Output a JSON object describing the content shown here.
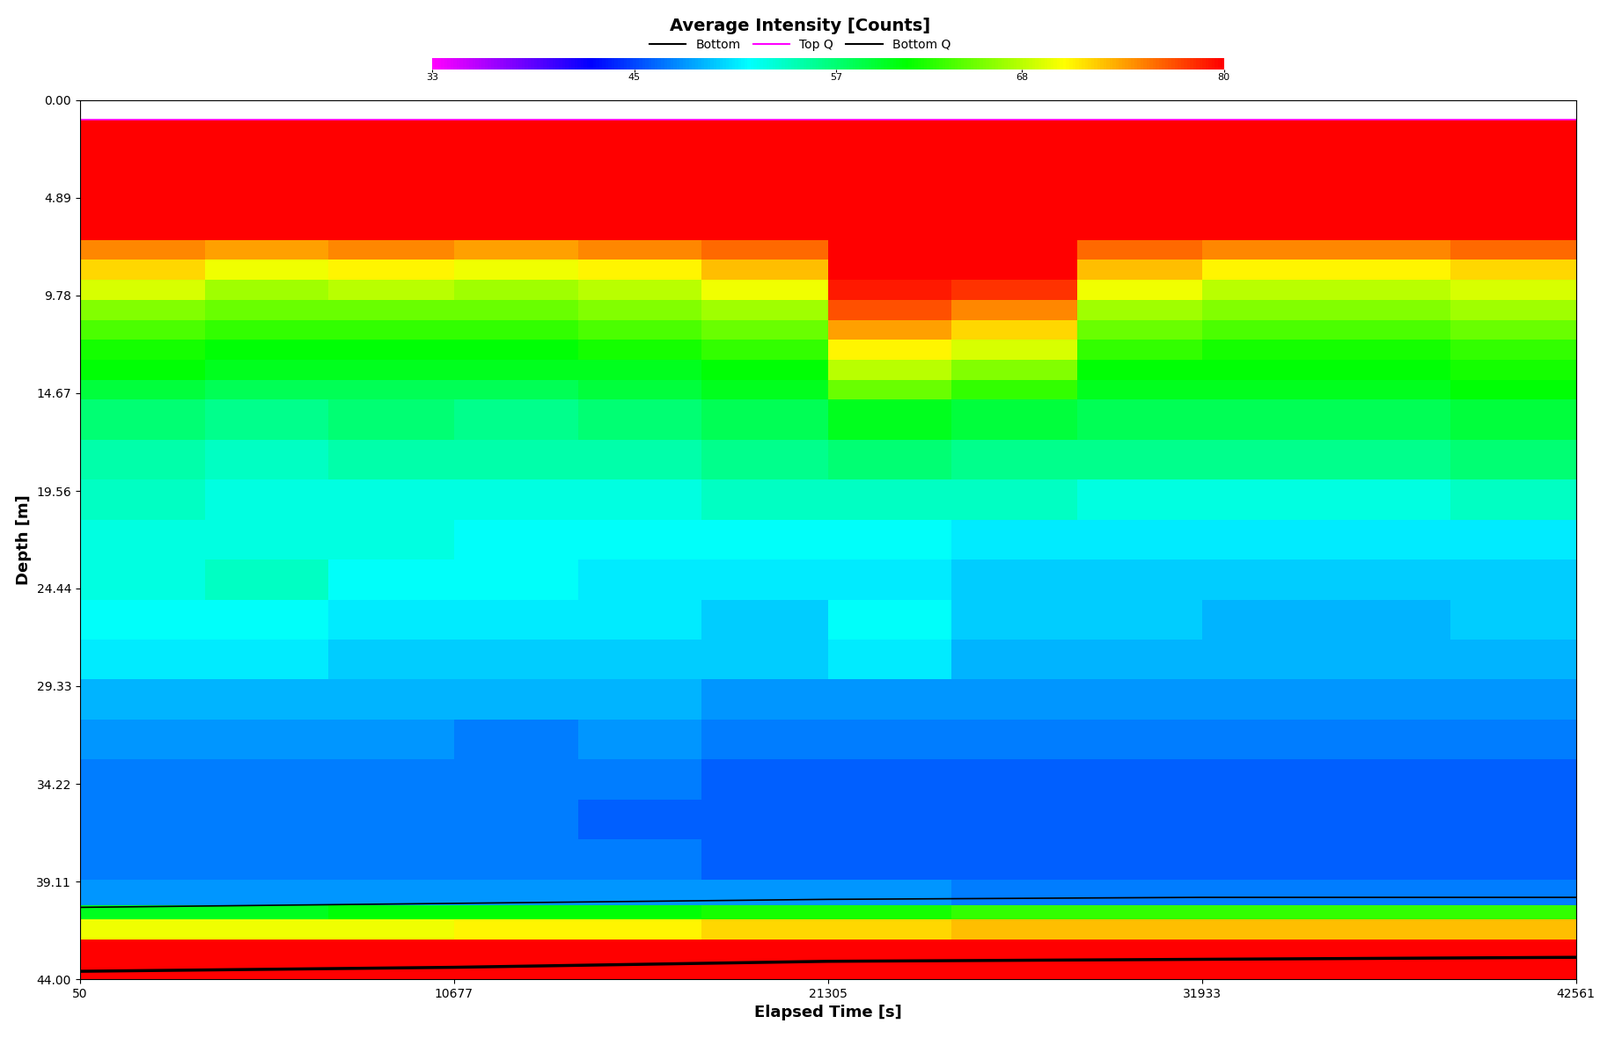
{
  "chart_data": {
    "type": "heatmap",
    "title": "Average Intensity [Counts]",
    "x_label": "Elapsed Time [s]",
    "y_label": "Depth [m]",
    "xlim": [
      50,
      42561
    ],
    "xticks": [
      50,
      10677,
      21305,
      31933,
      42561
    ],
    "ylim": [
      44,
      0
    ],
    "yticks": [
      {
        "value": 0,
        "label": "0.00"
      },
      4.89,
      9.78,
      14.67,
      19.56,
      24.44,
      29.33,
      34.22,
      39.11,
      {
        "value": 44,
        "label": "44.00"
      }
    ],
    "legend": "upper center",
    "colorbar_range": [
      33,
      80
    ],
    "colorbar_ticks": [
      33,
      45,
      57,
      68,
      80
    ],
    "time_edges": [
      50,
      3600,
      7100,
      10677,
      14200,
      17700,
      21305,
      24800,
      28400,
      31933,
      35500,
      39000,
      42561
    ],
    "depth_edges": [
      1,
      3,
      5,
      7,
      8,
      9,
      10,
      11,
      12,
      13,
      14,
      15,
      17,
      19,
      21,
      23,
      25,
      27,
      29,
      31,
      33,
      35,
      37,
      39,
      40.3,
      41,
      42,
      44
    ],
    "cells": [
      [
        80,
        80,
        80,
        80,
        80,
        80,
        80,
        80,
        80,
        80,
        80,
        80
      ],
      [
        80,
        80,
        80,
        80,
        80,
        80,
        80,
        80,
        80,
        80,
        80,
        80
      ],
      [
        80,
        80,
        80,
        80,
        80,
        80,
        80,
        80,
        80,
        80,
        80,
        80
      ],
      [
        75,
        74,
        75,
        74,
        75,
        76,
        80,
        80,
        76,
        75,
        75,
        76
      ],
      [
        72,
        70,
        71,
        70,
        71,
        73,
        80,
        80,
        73,
        71,
        71,
        72
      ],
      [
        69,
        67,
        68,
        67,
        68,
        70,
        79,
        78,
        70,
        68,
        68,
        69
      ],
      [
        66,
        65,
        65,
        65,
        66,
        67,
        77,
        75,
        67,
        66,
        66,
        67
      ],
      [
        64,
        63,
        63,
        63,
        64,
        65,
        74,
        72,
        65,
        64,
        64,
        65
      ],
      [
        62,
        61,
        61,
        61,
        62,
        63,
        71,
        69,
        63,
        62,
        62,
        63
      ],
      [
        61,
        60,
        60,
        60,
        60,
        61,
        68,
        66,
        61,
        61,
        61,
        62
      ],
      [
        59,
        58,
        58,
        58,
        59,
        60,
        65,
        63,
        60,
        60,
        60,
        61
      ],
      [
        57,
        56,
        57,
        56,
        57,
        58,
        60,
        59,
        58,
        58,
        58,
        59
      ],
      [
        55,
        54,
        55,
        55,
        55,
        56,
        57,
        56,
        56,
        56,
        56,
        57
      ],
      [
        54,
        53,
        53,
        53,
        53,
        54,
        54,
        54,
        53,
        53,
        53,
        54
      ],
      [
        53,
        53,
        53,
        52,
        52,
        52,
        52,
        51,
        51,
        51,
        51,
        51
      ],
      [
        53,
        54,
        52,
        52,
        51,
        51,
        51,
        50,
        50,
        50,
        50,
        50
      ],
      [
        52,
        52,
        51,
        51,
        51,
        50,
        52,
        50,
        50,
        49,
        49,
        50
      ],
      [
        51,
        51,
        50,
        50,
        50,
        50,
        51,
        49,
        49,
        49,
        49,
        49
      ],
      [
        49,
        49,
        49,
        49,
        49,
        48,
        48,
        48,
        48,
        48,
        48,
        48
      ],
      [
        48,
        48,
        48,
        47,
        48,
        47,
        47,
        47,
        47,
        47,
        47,
        47
      ],
      [
        47,
        47,
        47,
        47,
        47,
        46,
        46,
        46,
        46,
        46,
        46,
        46
      ],
      [
        47,
        47,
        47,
        47,
        46,
        46,
        46,
        46,
        46,
        46,
        46,
        46
      ],
      [
        47,
        47,
        47,
        47,
        47,
        46,
        46,
        46,
        46,
        46,
        46,
        46
      ],
      [
        48,
        48,
        48,
        48,
        48,
        48,
        48,
        47,
        47,
        47,
        47,
        47
      ],
      [
        60,
        60,
        61,
        61,
        61,
        62,
        62,
        63,
        63,
        63,
        63,
        63
      ],
      [
        70,
        70,
        70,
        71,
        71,
        72,
        72,
        73,
        73,
        73,
        73,
        73
      ],
      [
        80,
        80,
        80,
        80,
        80,
        80,
        80,
        80,
        80,
        80,
        80,
        80
      ]
    ],
    "series": [
      {
        "name": "Bottom",
        "type": "line",
        "color": "#000000",
        "x": [
          50,
          10677,
          21305,
          31933,
          42561
        ],
        "values": [
          43.6,
          43.4,
          43.1,
          43.0,
          42.9
        ]
      },
      {
        "name": "Top Q",
        "type": "line",
        "color": "#ff00ff",
        "x": [
          50,
          10677,
          21305,
          31933,
          42561
        ],
        "values": [
          1.0,
          1.0,
          1.0,
          1.0,
          1.0
        ]
      },
      {
        "name": "Bottom Q",
        "type": "line",
        "color": "#000000",
        "x": [
          50,
          10677,
          21305,
          31933,
          42561
        ],
        "values": [
          40.4,
          40.2,
          40.0,
          39.9,
          39.9
        ]
      }
    ]
  }
}
